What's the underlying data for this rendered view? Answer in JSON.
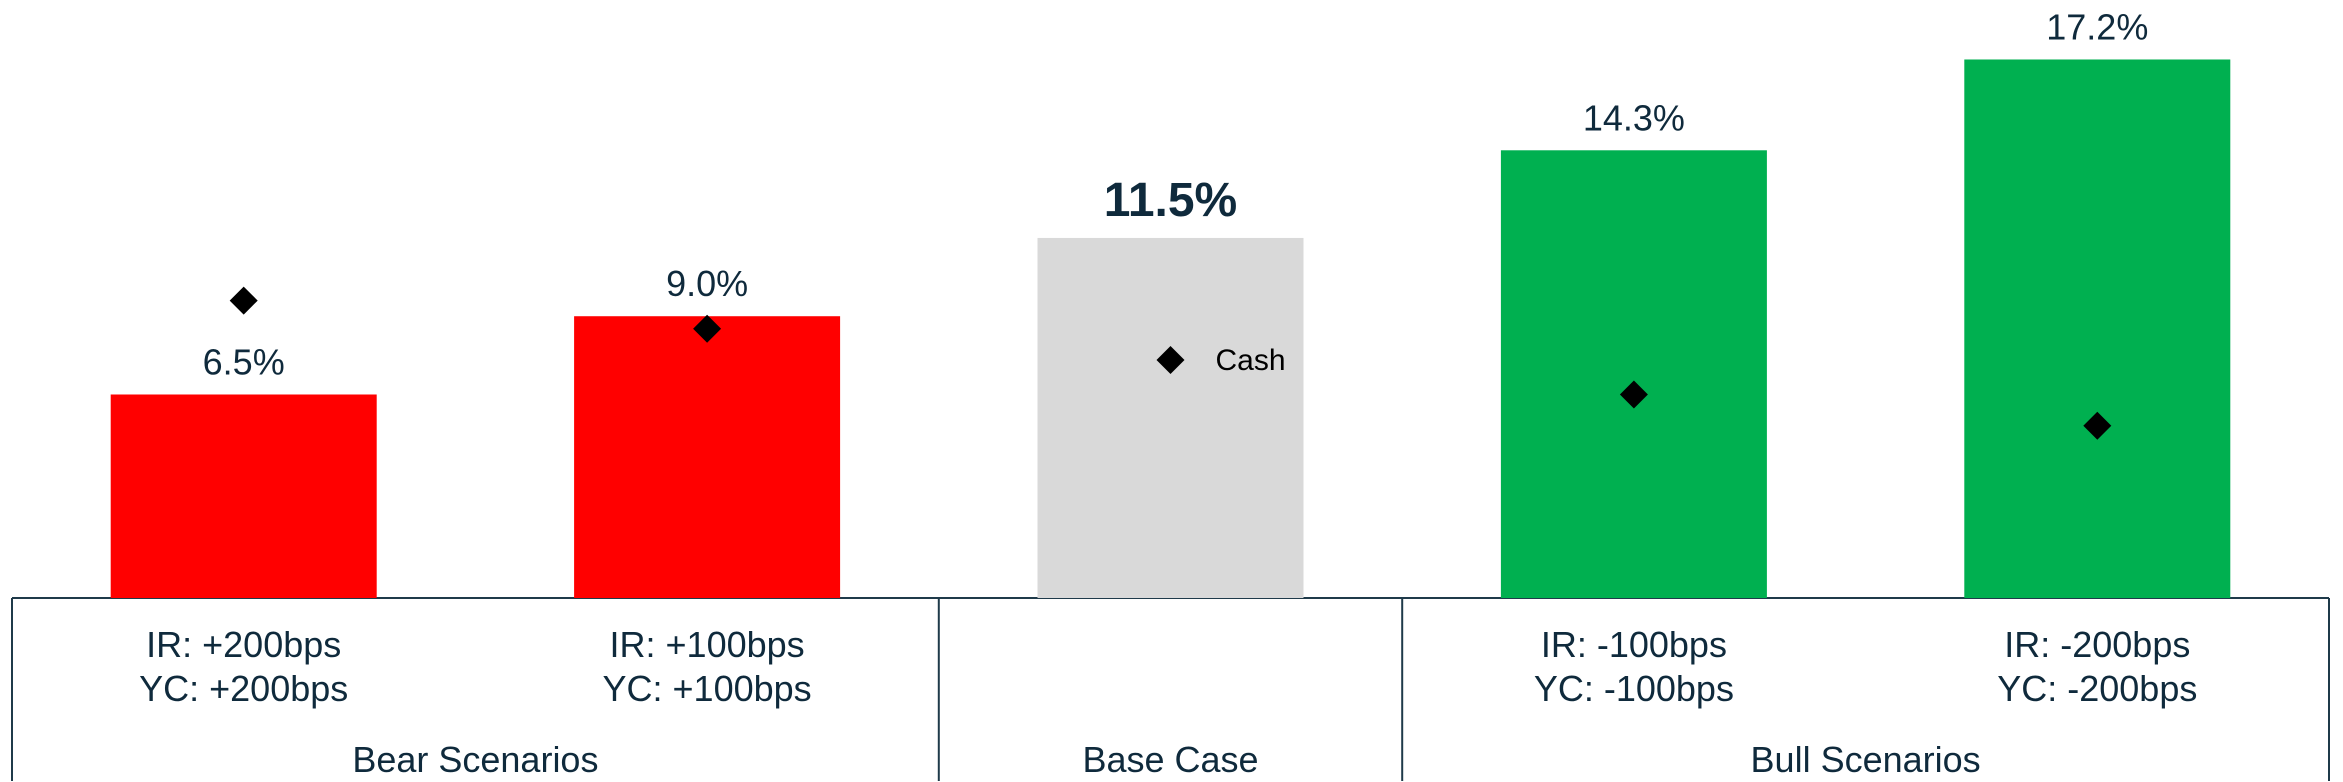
{
  "chart_data": {
    "type": "bar",
    "groups": [
      {
        "name": "Bear Scenarios",
        "categories": [
          [
            "IR: +200bps",
            "YC: +200bps"
          ],
          [
            "IR: +100bps",
            "YC: +100bps"
          ]
        ]
      },
      {
        "name": "Base Case",
        "categories": [
          null
        ]
      },
      {
        "name": "Bull Scenarios",
        "categories": [
          [
            "IR: -100bps",
            "YC: -100bps"
          ],
          [
            "IR: -200bps",
            "YC: -200bps"
          ]
        ]
      }
    ],
    "values": [
      6.5,
      9.0,
      11.5,
      14.3,
      17.2
    ],
    "value_labels": [
      "6.5%",
      "9.0%",
      "11.5%",
      "14.3%",
      "17.2%"
    ],
    "bold_labels": [
      false,
      false,
      true,
      false,
      false
    ],
    "colors": [
      "#ff0000",
      "#ff0000",
      "#d9d9d9",
      "#00b050",
      "#00b050"
    ],
    "markers": {
      "name": "Cash",
      "color": "#000000",
      "values": [
        9.5,
        8.6,
        7.6,
        6.5,
        5.5
      ]
    },
    "ylim": [
      0,
      19.1
    ]
  }
}
